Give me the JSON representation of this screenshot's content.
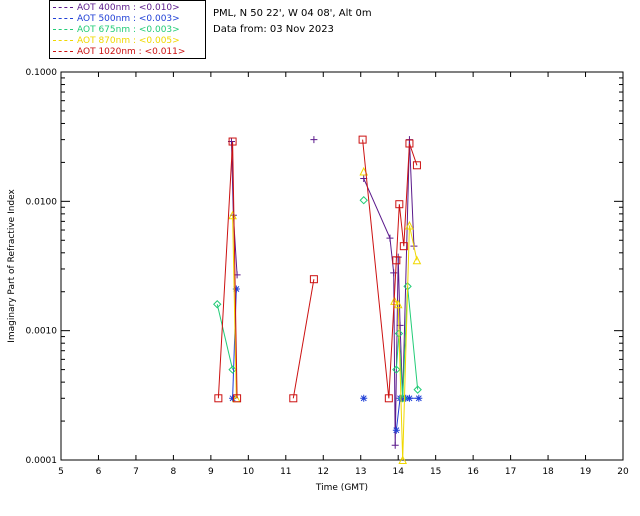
{
  "header": {
    "site": "PML, N 50 22', W 04 08', Alt 0m",
    "date": "Data from: 03 Nov 2023"
  },
  "legend": [
    {
      "label": "AOT  400nm : <0.010>",
      "color": "#5b1a8c"
    },
    {
      "label": "AOT  500nm : <0.003>",
      "color": "#1f3fd6"
    },
    {
      "label": "AOT  675nm : <0.003>",
      "color": "#22cc77"
    },
    {
      "label": "AOT  870nm : <0.005>",
      "color": "#f0d800"
    },
    {
      "label": "AOT 1020nm : <0.011>",
      "color": "#cc1111"
    }
  ],
  "chart_data": {
    "type": "line",
    "xlabel": "Time (GMT)",
    "ylabel": "Imaginary Part of Refractive Index",
    "xlim": [
      5,
      20
    ],
    "ylim": [
      0.0001,
      0.1
    ],
    "yscale": "log",
    "xticks": [
      "5",
      "6",
      "7",
      "8",
      "9",
      "10",
      "11",
      "12",
      "13",
      "14",
      "15",
      "16",
      "17",
      "18",
      "19",
      "20"
    ],
    "yticks": [
      "0.0001",
      "0.0010",
      "0.0100",
      "0.1000"
    ],
    "series": [
      {
        "name": "AOT  400nm : <0.010>",
        "color": "#5b1a8c",
        "marker": "plus",
        "points": [
          [
            9.55,
            0.029
          ],
          [
            9.6,
            0.0078
          ],
          [
            9.7,
            0.0027
          ],
          [
            11.75,
            0.03
          ],
          [
            13.08,
            0.015
          ],
          [
            13.78,
            0.0052
          ],
          [
            13.88,
            0.0028
          ],
          [
            13.92,
            0.00013
          ],
          [
            14.0,
            0.0037
          ],
          [
            14.05,
            0.0011
          ],
          [
            14.12,
            0.0003
          ],
          [
            14.3,
            0.03
          ],
          [
            14.42,
            0.0045
          ]
        ]
      },
      {
        "name": "AOT  500nm : <0.003>",
        "color": "#1f3fd6",
        "marker": "asterisk",
        "points": [
          [
            9.58,
            0.0003
          ],
          [
            9.68,
            0.0021
          ],
          [
            13.08,
            0.0003
          ],
          [
            13.95,
            0.00017
          ],
          [
            14.05,
            0.0003
          ],
          [
            14.1,
            0.0003
          ],
          [
            14.2,
            0.0003
          ],
          [
            14.3,
            0.0003
          ],
          [
            14.55,
            0.0003
          ]
        ]
      },
      {
        "name": "AOT  675nm : <0.003>",
        "color": "#22cc77",
        "marker": "diamond",
        "points": [
          [
            9.17,
            0.0016
          ],
          [
            9.58,
            0.0005
          ],
          [
            13.08,
            0.0102
          ],
          [
            13.95,
            0.0005
          ],
          [
            14.02,
            0.00095
          ],
          [
            14.12,
            0.0003
          ],
          [
            14.25,
            0.0022
          ],
          [
            14.52,
            0.00035
          ]
        ]
      },
      {
        "name": "AOT  870nm : <0.005>",
        "color": "#f0d800",
        "marker": "triangle",
        "points": [
          [
            9.58,
            0.0078
          ],
          [
            9.68,
            0.0003
          ],
          [
            13.08,
            0.017
          ],
          [
            13.9,
            0.0017
          ],
          [
            14.0,
            0.0016
          ],
          [
            14.12,
            0.0001
          ],
          [
            14.3,
            0.0065
          ],
          [
            14.5,
            0.0035
          ]
        ]
      },
      {
        "name": "AOT 1020nm : <0.011>",
        "color": "#cc1111",
        "marker": "square",
        "points": [
          [
            9.2,
            0.0003
          ],
          [
            9.58,
            0.029
          ],
          [
            9.7,
            0.0003
          ],
          [
            11.2,
            0.0003
          ],
          [
            11.75,
            0.0025
          ],
          [
            13.05,
            0.03
          ],
          [
            13.75,
            0.0003
          ],
          [
            13.95,
            0.0035
          ],
          [
            14.03,
            0.0095
          ],
          [
            14.15,
            0.0045
          ],
          [
            14.3,
            0.028
          ],
          [
            14.5,
            0.019
          ]
        ]
      }
    ]
  }
}
